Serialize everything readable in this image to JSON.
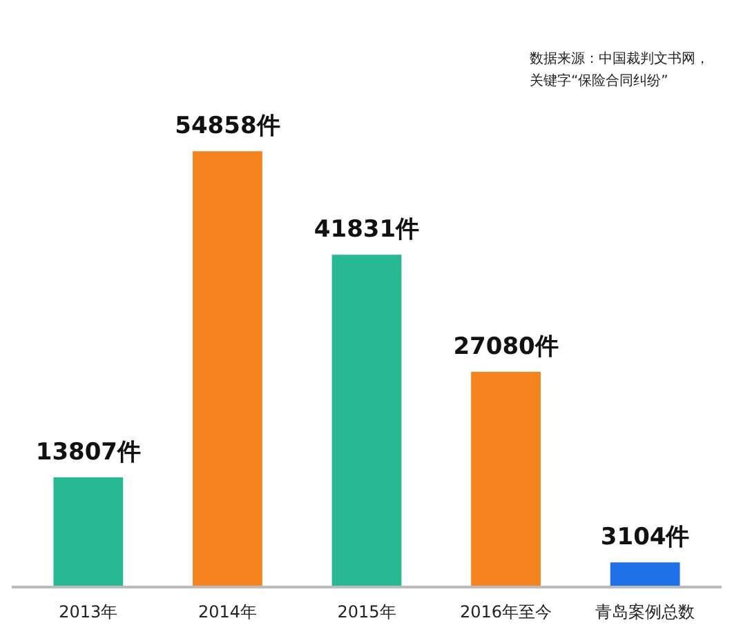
{
  "chart_data": {
    "type": "bar",
    "categories": [
      "2013年",
      "2014年",
      "2015年",
      "2016年至今",
      "青岛案例总数"
    ],
    "values": [
      13807,
      54858,
      41831,
      27080,
      3104
    ],
    "colors": [
      "#29b894",
      "#f5841f",
      "#29b894",
      "#f5841f",
      "#1f6fe8"
    ],
    "value_labels": [
      "13807件",
      "54858件",
      "41831件",
      "27080件",
      "3104件"
    ],
    "annotations": [
      "数据来源：中国裁判文书网，",
      "关键字“保险合同纠纷”"
    ]
  }
}
